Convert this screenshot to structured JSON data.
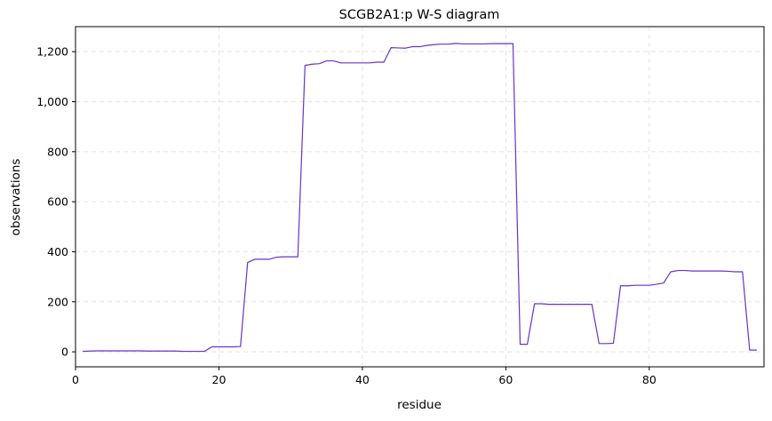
{
  "chart_data": {
    "type": "line",
    "title": "SCGB2A1:p W-S diagram",
    "xlabel": "residue",
    "ylabel": "observations",
    "xlim": [
      0,
      96
    ],
    "ylim": [
      -60,
      1300
    ],
    "xticks": [
      0,
      20,
      40,
      60,
      80
    ],
    "xtick_labels": [
      "0",
      "20",
      "40",
      "60",
      "80"
    ],
    "yticks": [
      0,
      200,
      400,
      600,
      800,
      1000,
      1200
    ],
    "ytick_labels": [
      "0",
      "200",
      "400",
      "600",
      "800",
      "1,000",
      "1,200"
    ],
    "grid": true,
    "line_color": "#6633cc",
    "series": [
      {
        "x": [
          1,
          2,
          3,
          4,
          5,
          6,
          7,
          8,
          9,
          10,
          11,
          12,
          13,
          14,
          15,
          16,
          17,
          18,
          19,
          20,
          21,
          22,
          23,
          24,
          25,
          26,
          27,
          28,
          29,
          30,
          31,
          32,
          33,
          34,
          35,
          36,
          37,
          38,
          39,
          40,
          41,
          42,
          43,
          44,
          45,
          46,
          47,
          48,
          49,
          50,
          51,
          52,
          53,
          54,
          55,
          56,
          57,
          58,
          59,
          60,
          61,
          62,
          63,
          64,
          65,
          66,
          67,
          68,
          69,
          70,
          71,
          72,
          73,
          74,
          75,
          76,
          77,
          78,
          79,
          80,
          81,
          82,
          83,
          84,
          85,
          86,
          87,
          88,
          89,
          90,
          91,
          92,
          93,
          94,
          95
        ],
        "y": [
          2,
          3,
          4,
          4,
          4,
          4,
          4,
          4,
          4,
          3,
          3,
          3,
          3,
          3,
          2,
          2,
          2,
          2,
          20,
          20,
          20,
          20,
          21,
          357,
          370,
          370,
          370,
          378,
          380,
          380,
          380,
          1145,
          1150,
          1152,
          1163,
          1163,
          1155,
          1155,
          1155,
          1155,
          1155,
          1158,
          1158,
          1216,
          1215,
          1214,
          1220,
          1220,
          1225,
          1228,
          1230,
          1230,
          1233,
          1231,
          1231,
          1231,
          1231,
          1232,
          1232,
          1232,
          1232,
          30,
          30,
          192,
          192,
          190,
          190,
          190,
          190,
          190,
          190,
          190,
          33,
          33,
          34,
          264,
          264,
          266,
          266,
          266,
          270,
          275,
          320,
          325,
          325,
          323,
          323,
          323,
          323,
          323,
          322,
          320,
          320,
          7,
          7
        ]
      }
    ]
  }
}
